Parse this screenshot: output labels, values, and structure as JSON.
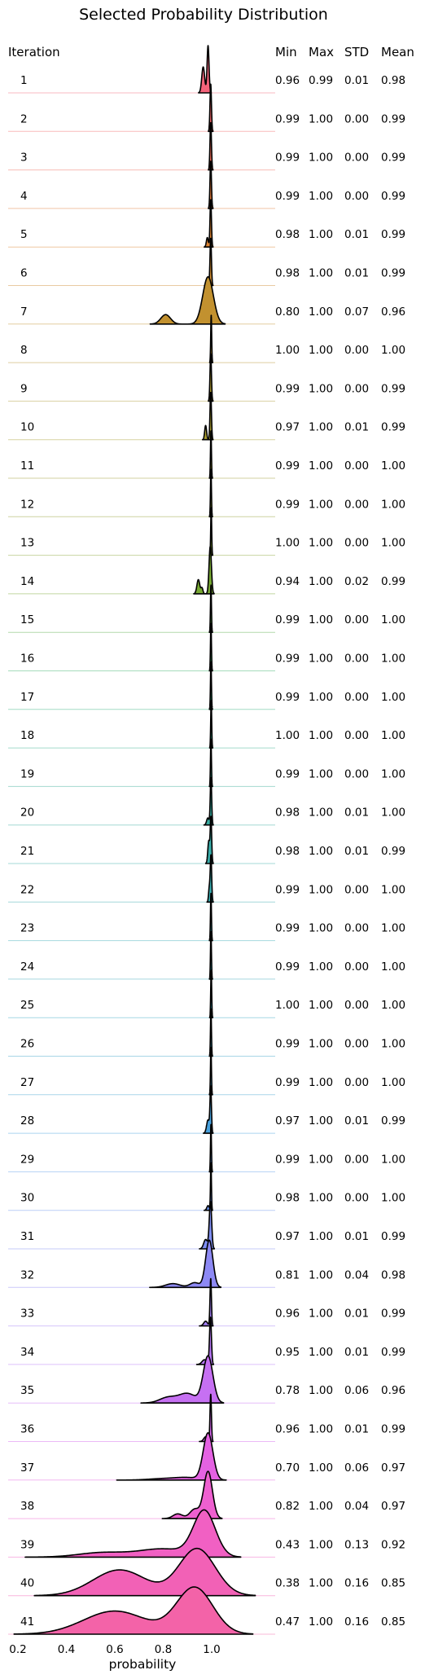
{
  "chart_data": {
    "type": "ridgeline",
    "title": "Selected Probability Distribution",
    "row_header": "Iteration",
    "stat_headers": [
      "Min",
      "Max",
      "STD",
      "Mean"
    ],
    "xlabel": "probability",
    "x_ticks": [
      0.2,
      0.4,
      0.6,
      0.8,
      1.0
    ],
    "xlim": [
      0.17,
      1.24
    ],
    "rows": [
      {
        "iteration": "1",
        "min": "0.96",
        "max": "0.99",
        "std": "0.01",
        "mean": "0.98",
        "color": "#f4637a",
        "dist": [
          [
            0.965,
            0.55,
            0.006
          ],
          [
            0.985,
            1.0,
            0.004
          ]
        ]
      },
      {
        "iteration": "2",
        "min": "0.99",
        "max": "1.00",
        "std": "0.00",
        "mean": "0.99",
        "color": "#f3686c",
        "dist": [
          [
            0.996,
            1.0,
            0.003
          ]
        ]
      },
      {
        "iteration": "3",
        "min": "0.99",
        "max": "1.00",
        "std": "0.00",
        "mean": "0.99",
        "color": "#ef6d5a",
        "dist": [
          [
            0.996,
            1.0,
            0.003
          ]
        ]
      },
      {
        "iteration": "4",
        "min": "0.99",
        "max": "1.00",
        "std": "0.00",
        "mean": "0.99",
        "color": "#e37b3c",
        "dist": [
          [
            0.996,
            1.0,
            0.003
          ]
        ]
      },
      {
        "iteration": "5",
        "min": "0.98",
        "max": "1.00",
        "std": "0.01",
        "mean": "0.99",
        "color": "#dd8433",
        "dist": [
          [
            0.982,
            0.2,
            0.004
          ],
          [
            0.996,
            1.0,
            0.003
          ]
        ]
      },
      {
        "iteration": "6",
        "min": "0.98",
        "max": "1.00",
        "std": "0.01",
        "mean": "0.99",
        "color": "#d08c32",
        "dist": [
          [
            0.983,
            0.15,
            0.004
          ],
          [
            0.996,
            1.0,
            0.003
          ]
        ]
      },
      {
        "iteration": "7",
        "min": "0.80",
        "max": "1.00",
        "std": "0.07",
        "mean": "0.96",
        "color": "#c2912f",
        "dist": [
          [
            0.81,
            0.2,
            0.02
          ],
          [
            0.985,
            1.0,
            0.022
          ]
        ]
      },
      {
        "iteration": "8",
        "min": "1.00",
        "max": "1.00",
        "std": "0.00",
        "mean": "1.00",
        "color": "#b89530",
        "dist": [
          [
            0.998,
            1.0,
            0.002
          ]
        ]
      },
      {
        "iteration": "9",
        "min": "0.99",
        "max": "1.00",
        "std": "0.00",
        "mean": "0.99",
        "color": "#ad9932",
        "dist": [
          [
            0.996,
            1.0,
            0.003
          ]
        ]
      },
      {
        "iteration": "10",
        "min": "0.97",
        "max": "1.00",
        "std": "0.01",
        "mean": "0.99",
        "color": "#a89c30",
        "dist": [
          [
            0.975,
            0.3,
            0.004
          ],
          [
            0.996,
            1.0,
            0.003
          ]
        ]
      },
      {
        "iteration": "11",
        "min": "0.99",
        "max": "1.00",
        "std": "0.00",
        "mean": "1.00",
        "color": "#a09d31",
        "dist": [
          [
            0.997,
            1.0,
            0.002
          ]
        ]
      },
      {
        "iteration": "12",
        "min": "0.99",
        "max": "1.00",
        "std": "0.00",
        "mean": "1.00",
        "color": "#93a031",
        "dist": [
          [
            0.997,
            1.0,
            0.002
          ]
        ]
      },
      {
        "iteration": "13",
        "min": "1.00",
        "max": "1.00",
        "std": "0.00",
        "mean": "1.00",
        "color": "#86a331",
        "dist": [
          [
            0.998,
            1.0,
            0.002
          ]
        ]
      },
      {
        "iteration": "14",
        "min": "0.94",
        "max": "1.00",
        "std": "0.02",
        "mean": "0.99",
        "color": "#77a832",
        "dist": [
          [
            0.945,
            0.3,
            0.006
          ],
          [
            0.96,
            0.12,
            0.004
          ],
          [
            0.994,
            1.0,
            0.005
          ]
        ]
      },
      {
        "iteration": "15",
        "min": "0.99",
        "max": "1.00",
        "std": "0.00",
        "mean": "1.00",
        "color": "#5aad4a",
        "dist": [
          [
            0.997,
            1.0,
            0.002
          ]
        ]
      },
      {
        "iteration": "16",
        "min": "0.99",
        "max": "1.00",
        "std": "0.00",
        "mean": "1.00",
        "color": "#3bb16a",
        "dist": [
          [
            0.997,
            1.0,
            0.002
          ]
        ]
      },
      {
        "iteration": "17",
        "min": "0.99",
        "max": "1.00",
        "std": "0.00",
        "mean": "1.00",
        "color": "#35b07f",
        "dist": [
          [
            0.997,
            1.0,
            0.002
          ]
        ]
      },
      {
        "iteration": "18",
        "min": "1.00",
        "max": "1.00",
        "std": "0.00",
        "mean": "1.00",
        "color": "#35ae8e",
        "dist": [
          [
            0.998,
            1.0,
            0.002
          ]
        ]
      },
      {
        "iteration": "19",
        "min": "0.99",
        "max": "1.00",
        "std": "0.00",
        "mean": "1.00",
        "color": "#36ad98",
        "dist": [
          [
            0.997,
            1.0,
            0.002
          ]
        ]
      },
      {
        "iteration": "20",
        "min": "0.98",
        "max": "1.00",
        "std": "0.01",
        "mean": "1.00",
        "color": "#37aca1",
        "dist": [
          [
            0.984,
            0.15,
            0.005
          ],
          [
            0.997,
            1.0,
            0.003
          ]
        ]
      },
      {
        "iteration": "21",
        "min": "0.98",
        "max": "1.00",
        "std": "0.01",
        "mean": "0.99",
        "color": "#38aba8",
        "dist": [
          [
            0.988,
            0.5,
            0.004
          ],
          [
            0.997,
            1.0,
            0.003
          ]
        ]
      },
      {
        "iteration": "22",
        "min": "0.99",
        "max": "1.00",
        "std": "0.00",
        "mean": "1.00",
        "color": "#39aaae",
        "dist": [
          [
            0.99,
            0.3,
            0.003
          ],
          [
            0.997,
            1.0,
            0.003
          ]
        ]
      },
      {
        "iteration": "23",
        "min": "0.99",
        "max": "1.00",
        "std": "0.00",
        "mean": "1.00",
        "color": "#3aa9b4",
        "dist": [
          [
            0.997,
            1.0,
            0.002
          ]
        ]
      },
      {
        "iteration": "24",
        "min": "0.99",
        "max": "1.00",
        "std": "0.00",
        "mean": "1.00",
        "color": "#3ba8ba",
        "dist": [
          [
            0.997,
            1.0,
            0.002
          ]
        ]
      },
      {
        "iteration": "25",
        "min": "1.00",
        "max": "1.00",
        "std": "0.00",
        "mean": "1.00",
        "color": "#3da7c1",
        "dist": [
          [
            0.998,
            1.0,
            0.002
          ]
        ]
      },
      {
        "iteration": "26",
        "min": "0.99",
        "max": "1.00",
        "std": "0.00",
        "mean": "1.00",
        "color": "#3fa5c9",
        "dist": [
          [
            0.997,
            1.0,
            0.002
          ]
        ]
      },
      {
        "iteration": "27",
        "min": "0.99",
        "max": "1.00",
        "std": "0.00",
        "mean": "1.00",
        "color": "#42a3d1",
        "dist": [
          [
            0.997,
            1.0,
            0.002
          ]
        ]
      },
      {
        "iteration": "28",
        "min": "0.97",
        "max": "1.00",
        "std": "0.01",
        "mean": "0.99",
        "color": "#47a0dc",
        "dist": [
          [
            0.985,
            0.3,
            0.006
          ],
          [
            0.996,
            1.0,
            0.003
          ]
        ]
      },
      {
        "iteration": "29",
        "min": "0.99",
        "max": "1.00",
        "std": "0.00",
        "mean": "1.00",
        "color": "#5a9ae8",
        "dist": [
          [
            0.997,
            1.0,
            0.002
          ]
        ]
      },
      {
        "iteration": "30",
        "min": "0.98",
        "max": "1.00",
        "std": "0.00",
        "mean": "1.00",
        "color": "#6d94ee",
        "dist": [
          [
            0.985,
            0.1,
            0.005
          ],
          [
            0.997,
            1.0,
            0.002
          ]
        ]
      },
      {
        "iteration": "31",
        "min": "0.97",
        "max": "1.00",
        "std": "0.01",
        "mean": "0.99",
        "color": "#7f8ef2",
        "dist": [
          [
            0.975,
            0.2,
            0.008
          ],
          [
            0.995,
            1.0,
            0.005
          ]
        ]
      },
      {
        "iteration": "32",
        "min": "0.81",
        "max": "1.00",
        "std": "0.04",
        "mean": "0.98",
        "color": "#8d89f4",
        "dist": [
          [
            0.84,
            0.08,
            0.03
          ],
          [
            0.93,
            0.1,
            0.02
          ],
          [
            0.99,
            1.0,
            0.015
          ]
        ]
      },
      {
        "iteration": "33",
        "min": "0.96",
        "max": "1.00",
        "std": "0.01",
        "mean": "0.99",
        "color": "#a27ff4",
        "dist": [
          [
            0.975,
            0.1,
            0.008
          ],
          [
            0.996,
            1.0,
            0.003
          ]
        ]
      },
      {
        "iteration": "34",
        "min": "0.95",
        "max": "1.00",
        "std": "0.01",
        "mean": "0.99",
        "color": "#b676f4",
        "dist": [
          [
            0.97,
            0.1,
            0.01
          ],
          [
            0.995,
            1.0,
            0.004
          ]
        ]
      },
      {
        "iteration": "35",
        "min": "0.78",
        "max": "1.00",
        "std": "0.06",
        "mean": "0.96",
        "color": "#c670f2",
        "dist": [
          [
            0.82,
            0.12,
            0.035
          ],
          [
            0.9,
            0.2,
            0.035
          ],
          [
            0.985,
            1.0,
            0.02
          ]
        ]
      },
      {
        "iteration": "36",
        "min": "0.96",
        "max": "1.00",
        "std": "0.01",
        "mean": "0.99",
        "color": "#d567ee",
        "dist": [
          [
            0.975,
            0.1,
            0.008
          ],
          [
            0.996,
            1.0,
            0.003
          ]
        ]
      },
      {
        "iteration": "37",
        "min": "0.70",
        "max": "1.00",
        "std": "0.06",
        "mean": "0.97",
        "color": "#e462e2",
        "dist": [
          [
            0.8,
            0.03,
            0.06
          ],
          [
            0.9,
            0.05,
            0.05
          ],
          [
            0.985,
            1.0,
            0.02
          ]
        ]
      },
      {
        "iteration": "38",
        "min": "0.82",
        "max": "1.00",
        "std": "0.04",
        "mean": "0.97",
        "color": "#ee60d0",
        "dist": [
          [
            0.86,
            0.1,
            0.02
          ],
          [
            0.93,
            0.2,
            0.02
          ],
          [
            0.985,
            1.0,
            0.018
          ]
        ]
      },
      {
        "iteration": "39",
        "min": "0.43",
        "max": "1.00",
        "std": "0.13",
        "mean": "0.92",
        "color": "#f160c3",
        "dist": [
          [
            0.55,
            0.1,
            0.1
          ],
          [
            0.8,
            0.18,
            0.1
          ],
          [
            0.97,
            1.0,
            0.045
          ]
        ]
      },
      {
        "iteration": "40",
        "min": "0.38",
        "max": "1.00",
        "std": "0.16",
        "mean": "0.85",
        "color": "#f261b6",
        "dist": [
          [
            0.62,
            0.55,
            0.11
          ],
          [
            0.94,
            1.0,
            0.075
          ]
        ]
      },
      {
        "iteration": "41",
        "min": "0.47",
        "max": "1.00",
        "std": "0.16",
        "mean": "0.85",
        "color": "#f363a8",
        "dist": [
          [
            0.6,
            0.5,
            0.13
          ],
          [
            0.93,
            1.0,
            0.075
          ]
        ]
      }
    ]
  }
}
